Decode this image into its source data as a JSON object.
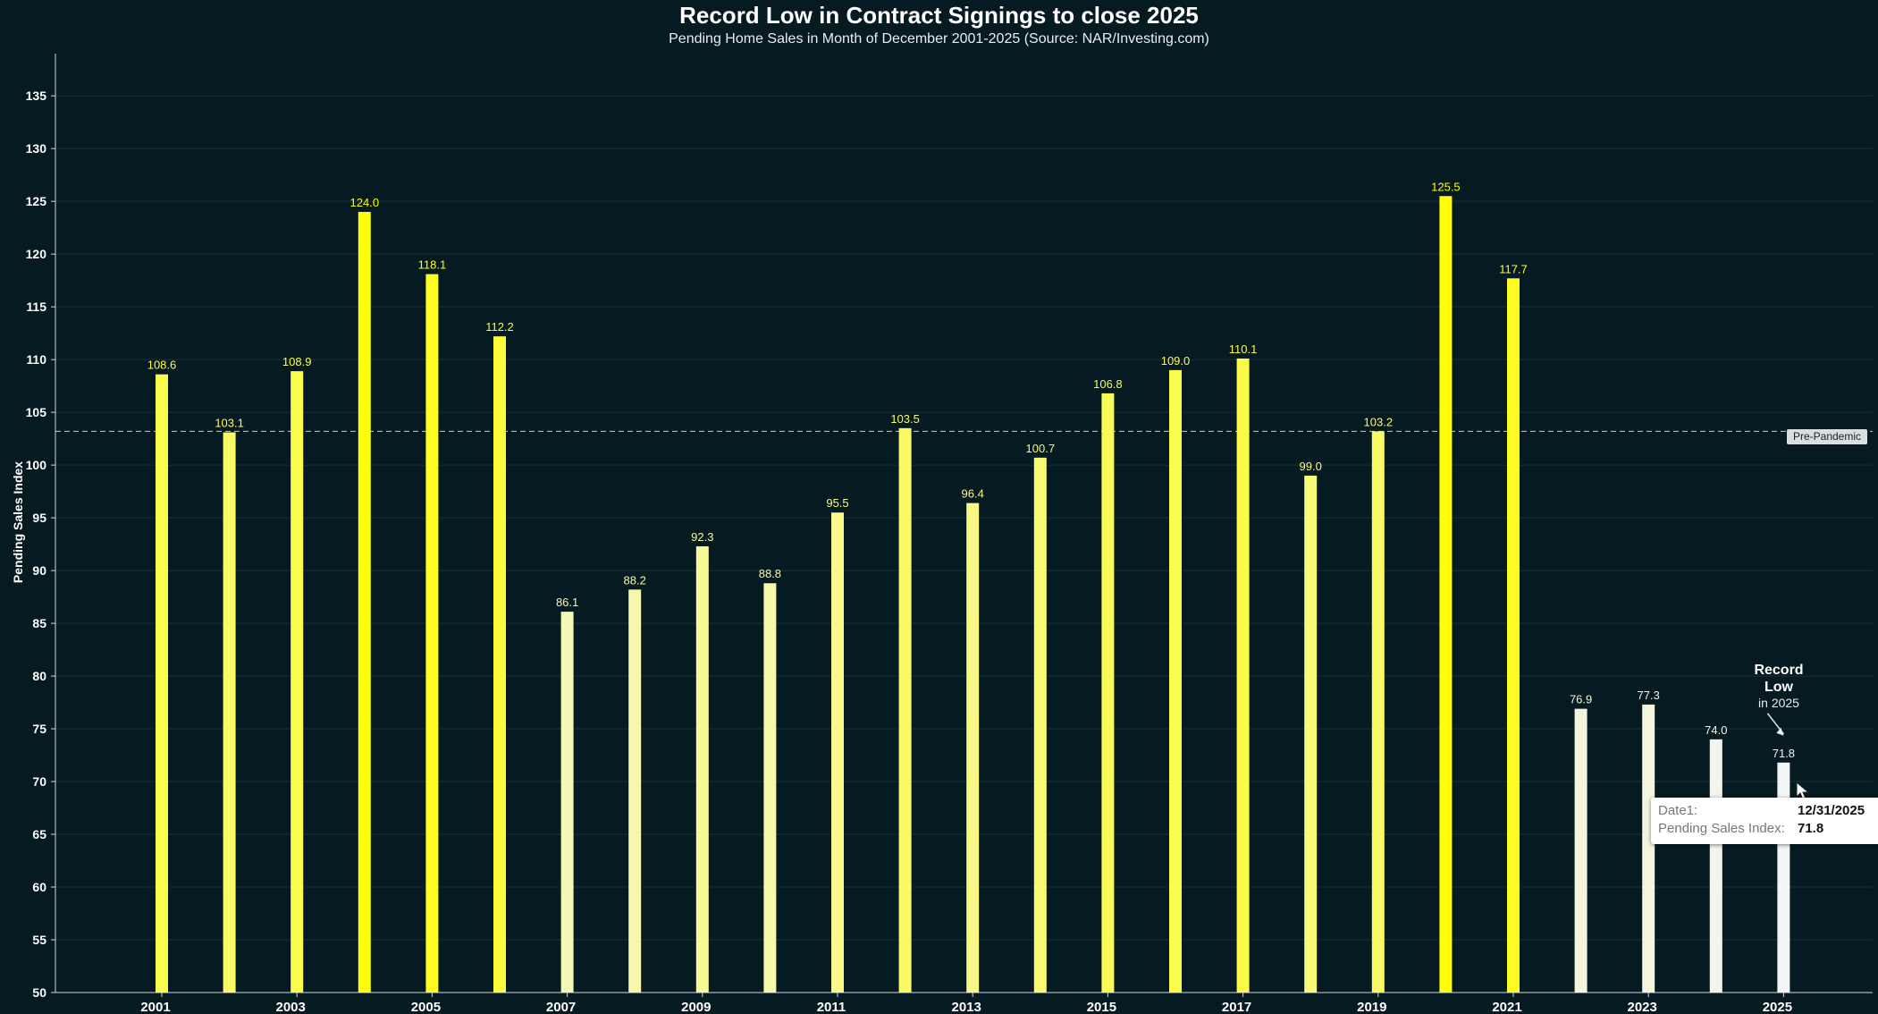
{
  "chart_data": {
    "type": "bar",
    "title": "Record Low in Contract Signings to close 2025",
    "subtitle": "Pending Home Sales in Month of December 2001-2025 (Source: NAR/Investing.com)",
    "ylabel": "Pending Sales Index",
    "ylim": [
      50,
      139
    ],
    "yticks": [
      50,
      55,
      60,
      65,
      70,
      75,
      80,
      85,
      90,
      95,
      100,
      105,
      110,
      115,
      120,
      125,
      130,
      135
    ],
    "grid": true,
    "categories": [
      "2001",
      "2002",
      "2003",
      "2004",
      "2005",
      "2006",
      "2007",
      "2008",
      "2009",
      "2010",
      "2011",
      "2012",
      "2013",
      "2014",
      "2015",
      "2016",
      "2017",
      "2018",
      "2019",
      "2020",
      "2021",
      "2022",
      "2023",
      "2024",
      "2025"
    ],
    "xtick_labels": [
      "2001",
      "2003",
      "2005",
      "2007",
      "2009",
      "2011",
      "2013",
      "2015",
      "2017",
      "2019",
      "2021",
      "2023",
      "2025"
    ],
    "values": [
      108.6,
      103.1,
      108.9,
      124.0,
      118.1,
      112.2,
      86.1,
      88.2,
      92.3,
      88.8,
      95.5,
      103.5,
      96.4,
      100.7,
      106.8,
      109.0,
      110.1,
      99.0,
      103.2,
      125.5,
      117.7,
      76.9,
      77.3,
      74.0,
      71.8
    ],
    "value_labels": [
      "108.6",
      "103.1",
      "108.9",
      "124.0",
      "118.1",
      "112.2",
      "86.1",
      "88.2",
      "92.3",
      "88.8",
      "95.5",
      "103.5",
      "96.4",
      "100.7",
      "106.8",
      "109.0",
      "110.1",
      "99.0",
      "103.2",
      "125.5",
      "117.7",
      "76.9",
      "77.3",
      "74.0",
      "71.8"
    ],
    "color_scale": {
      "low": "#f2f4f6",
      "high": "#ffff00",
      "min": 71.8,
      "max": 125.5
    },
    "reference_line": {
      "value": 103.2,
      "label": "Pre-Pandemic",
      "color": "#c9c9c9"
    },
    "annotation": {
      "line1": "Record",
      "line2": "Low",
      "line3": "in 2025",
      "target": "2025"
    },
    "tooltip": {
      "date_label": "Date1:",
      "date_value": "12/31/2025",
      "index_label": "Pending Sales Index:",
      "index_value": "71.8"
    }
  }
}
